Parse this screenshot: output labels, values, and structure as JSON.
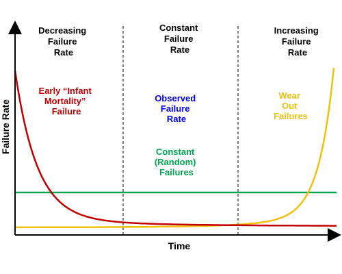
{
  "chart_data": {
    "type": "line",
    "xlabel": "Time",
    "ylabel": "Failure Rate",
    "grid": false,
    "regions": [
      {
        "lines": [
          "Decreasing",
          "Failure",
          "Rate"
        ]
      },
      {
        "lines": [
          "Constant",
          "Failure",
          "Rate"
        ]
      },
      {
        "lines": [
          "Increasing",
          "Failure",
          "Rate"
        ]
      }
    ],
    "annotations": [
      {
        "lines": [
          "Early “Infant",
          "Mortality”",
          "Failure"
        ],
        "color": "#c00000"
      },
      {
        "lines": [
          "Observed",
          "Failure",
          "Rate"
        ],
        "color": "#0000ee"
      },
      {
        "lines": [
          "Constant",
          "(Random)",
          "Failures"
        ],
        "color": "#00a550"
      },
      {
        "lines": [
          "Wear",
          "Out",
          "Failures"
        ],
        "color": "#f2c00e"
      }
    ],
    "colors": {
      "observed": "#c00000",
      "constant": "#00a550",
      "wearout": "#f2c00e"
    }
  }
}
